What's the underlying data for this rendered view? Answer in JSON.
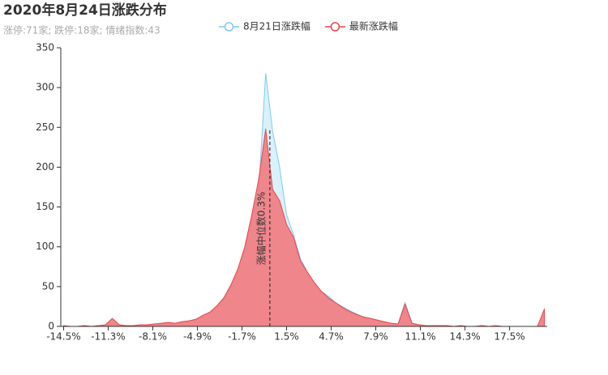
{
  "chart_data": {
    "type": "area",
    "title": "2020年8月24日涨跌分布",
    "subtitle": "涨停:71家; 跌停:18家; 情绪指数:43",
    "x": [
      -14.5,
      -14,
      -13.5,
      -13,
      -12.5,
      -12,
      -11.5,
      -11,
      -10.5,
      -10,
      -9.5,
      -9,
      -8.5,
      -8,
      -7.5,
      -7,
      -6.5,
      -6,
      -5.5,
      -5,
      -4.5,
      -4,
      -3.5,
      -3,
      -2.5,
      -2,
      -1.5,
      -1,
      -0.5,
      0,
      0.5,
      1,
      1.5,
      2,
      2.5,
      3,
      3.5,
      4,
      4.5,
      5,
      5.5,
      6,
      6.5,
      7,
      7.5,
      8,
      8.5,
      9,
      9.5,
      10,
      10.5,
      11,
      11.5,
      12,
      12.5,
      13,
      13.5,
      14,
      14.5,
      15,
      15.5,
      16,
      16.5,
      17,
      17.5,
      18,
      18.5,
      19,
      19.5,
      20
    ],
    "series": [
      {
        "name": "8月21日涨跌幅",
        "color": "#7fc8f0",
        "fill": "#d5effb",
        "values": [
          0,
          0,
          0,
          1,
          0,
          1,
          1,
          3,
          1,
          1,
          1,
          2,
          2,
          3,
          3,
          4,
          4,
          5,
          7,
          8,
          12,
          17,
          24,
          34,
          50,
          70,
          98,
          132,
          170,
          318,
          245,
          200,
          140,
          115,
          85,
          68,
          54,
          44,
          38,
          30,
          25,
          20,
          16,
          12,
          10,
          8,
          5,
          4,
          3,
          30,
          4,
          2,
          1,
          1,
          1,
          1,
          0,
          1,
          0,
          0,
          1,
          0,
          0,
          0,
          0,
          0,
          0,
          0,
          0,
          0
        ]
      },
      {
        "name": "最新涨跌幅",
        "color": "#e8474c",
        "fill": "#f07a7e",
        "values": [
          1,
          0,
          0,
          1,
          0,
          1,
          2,
          10,
          2,
          1,
          1,
          2,
          2,
          3,
          4,
          5,
          4,
          6,
          7,
          9,
          14,
          18,
          26,
          36,
          52,
          72,
          100,
          140,
          185,
          248,
          172,
          158,
          128,
          112,
          82,
          68,
          55,
          44,
          36,
          30,
          24,
          19,
          15,
          12,
          10,
          8,
          6,
          4,
          3,
          28,
          4,
          2,
          1,
          1,
          1,
          1,
          0,
          1,
          0,
          0,
          1,
          0,
          1,
          0,
          0,
          0,
          0,
          0,
          0,
          22
        ]
      }
    ],
    "median": {
      "value": 0.3,
      "label": "涨幅中位数0.3%"
    },
    "xlim": [
      -14.7,
      20.2
    ],
    "xticks": [
      {
        "value": -14.5,
        "label": "-14.5%"
      },
      {
        "value": -11.3,
        "label": "-11.3%"
      },
      {
        "value": -8.1,
        "label": "-8.1%"
      },
      {
        "value": -4.9,
        "label": "-4.9%"
      },
      {
        "value": -1.7,
        "label": "-1.7%"
      },
      {
        "value": 1.5,
        "label": "1.5%"
      },
      {
        "value": 4.7,
        "label": "4.7%"
      },
      {
        "value": 7.9,
        "label": "7.9%"
      },
      {
        "value": 11.1,
        "label": "11.1%"
      },
      {
        "value": 14.3,
        "label": "14.3%"
      },
      {
        "value": 17.5,
        "label": "17.5%"
      }
    ],
    "ylim": [
      0,
      350
    ],
    "yticks": [
      0,
      50,
      100,
      150,
      200,
      250,
      300,
      350
    ]
  }
}
